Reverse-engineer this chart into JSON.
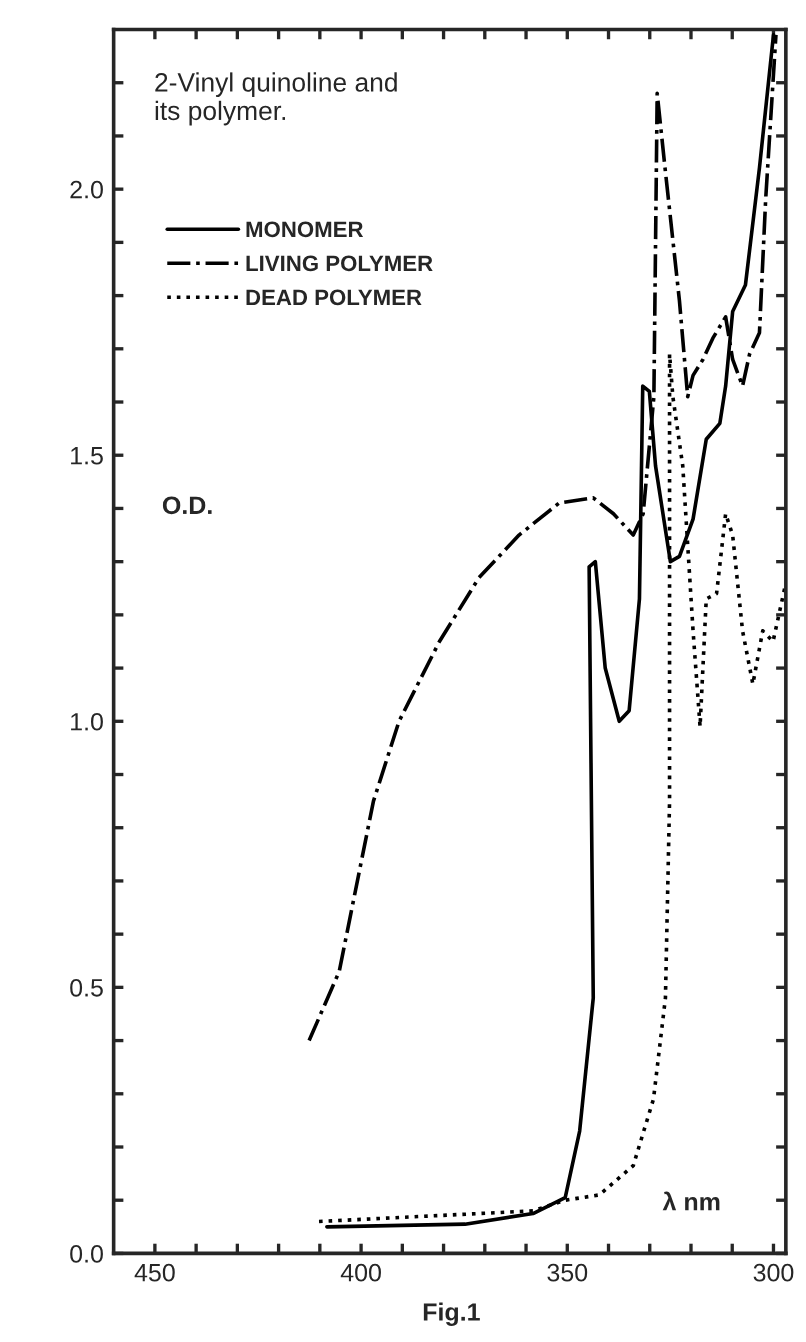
{
  "chart_data": {
    "type": "line",
    "title": "2-Vinyl quinoline and\nits polymer.",
    "xlabel": "λ nm",
    "ylabel": "O.D.",
    "annotations": [
      "Fig.1"
    ],
    "xlim": [
      460,
      297
    ],
    "ylim": [
      0,
      2.3
    ],
    "xticks": [
      {
        "value": 450,
        "label": "450"
      },
      {
        "value": 440,
        "label": null
      },
      {
        "value": 430,
        "label": null
      },
      {
        "value": 420,
        "label": null
      },
      {
        "value": 410,
        "label": null
      },
      {
        "value": 400,
        "label": "400"
      },
      {
        "value": 390,
        "label": null
      },
      {
        "value": 380,
        "label": null
      },
      {
        "value": 370,
        "label": null
      },
      {
        "value": 360,
        "label": null
      },
      {
        "value": 350,
        "label": "350"
      },
      {
        "value": 340,
        "label": null
      },
      {
        "value": 330,
        "label": null
      },
      {
        "value": 320,
        "label": null
      },
      {
        "value": 310,
        "label": null
      },
      {
        "value": 300,
        "label": "300"
      }
    ],
    "yticks": [
      {
        "value": 0,
        "label": "0.0"
      },
      {
        "value": 0.1,
        "label": null
      },
      {
        "value": 0.2,
        "label": null
      },
      {
        "value": 0.3,
        "label": null
      },
      {
        "value": 0.4,
        "label": null
      },
      {
        "value": 0.5,
        "label": "0.5"
      },
      {
        "value": 0.6,
        "label": null
      },
      {
        "value": 0.7,
        "label": null
      },
      {
        "value": 0.8,
        "label": null
      },
      {
        "value": 0.9,
        "label": null
      },
      {
        "value": 1.0,
        "label": "1.0"
      },
      {
        "value": 1.1,
        "label": null
      },
      {
        "value": 1.2,
        "label": null
      },
      {
        "value": 1.3,
        "label": null
      },
      {
        "value": 1.4,
        "label": null
      },
      {
        "value": 1.5,
        "label": "1.5"
      },
      {
        "value": 1.6,
        "label": null
      },
      {
        "value": 1.7,
        "label": null
      },
      {
        "value": 1.8,
        "label": null
      },
      {
        "value": 1.9,
        "label": null
      },
      {
        "value": 2.0,
        "label": "2.0"
      },
      {
        "value": 2.1,
        "label": null
      },
      {
        "value": 2.2,
        "label": null
      }
    ],
    "grid": false,
    "legend": "top left",
    "series": [
      {
        "name": "MONOMER",
        "color": "#000000",
        "line_style": "solid",
        "x": [
          408.3,
          374.8,
          358.3,
          350.5,
          347,
          343.7,
          344.7,
          343.2,
          340.8,
          337.4,
          335,
          332.5,
          331.7,
          330.1,
          328.6,
          325,
          322.8,
          319.5,
          316.3,
          313,
          311.6,
          309.9,
          306.8,
          303.4,
          300
        ],
        "values": [
          0.05,
          0.055,
          0.075,
          0.105,
          0.23,
          0.48,
          1.29,
          1.3,
          1.1,
          1.0,
          1.02,
          1.23,
          1.63,
          1.62,
          1.48,
          1.3,
          1.31,
          1.38,
          1.53,
          1.56,
          1.63,
          1.77,
          1.82,
          2.04,
          2.29
        ]
      },
      {
        "name": "LIVING POLYMER",
        "color": "#000000",
        "line_style": "dashdot",
        "x": [
          412.6,
          405.3,
          397,
          390.8,
          381,
          371.4,
          361.7,
          352,
          343.7,
          338.8,
          334,
          331.6,
          329,
          328.2,
          326.3,
          322.8,
          320.8,
          319.5,
          317.1,
          314.7,
          311.6,
          309.9,
          307.5,
          305.8,
          303.4,
          301.9,
          299.4
        ],
        "values": [
          0.4,
          0.53,
          0.85,
          1.0,
          1.15,
          1.27,
          1.35,
          1.41,
          1.42,
          1.39,
          1.35,
          1.39,
          1.61,
          2.18,
          2.04,
          1.79,
          1.61,
          1.65,
          1.68,
          1.72,
          1.76,
          1.68,
          1.63,
          1.69,
          1.73,
          1.98,
          2.29
        ]
      },
      {
        "name": "DEAD POLYMER",
        "color": "#000000",
        "line_style": "dotted",
        "x": [
          410.2,
          358.3,
          350.5,
          342.2,
          334,
          329.1,
          326.2,
          325.2,
          325.2,
          324.4,
          322,
          319.5,
          317.8,
          316.3,
          313.8,
          311.6,
          309.9,
          307.5,
          305,
          302.6,
          300.1,
          297
        ],
        "values": [
          0.06,
          0.08,
          0.1,
          0.11,
          0.165,
          0.29,
          0.48,
          0.85,
          1.69,
          1.61,
          1.48,
          1.17,
          0.99,
          1.23,
          1.24,
          1.39,
          1.35,
          1.17,
          1.07,
          1.17,
          1.15,
          1.26
        ]
      }
    ]
  }
}
